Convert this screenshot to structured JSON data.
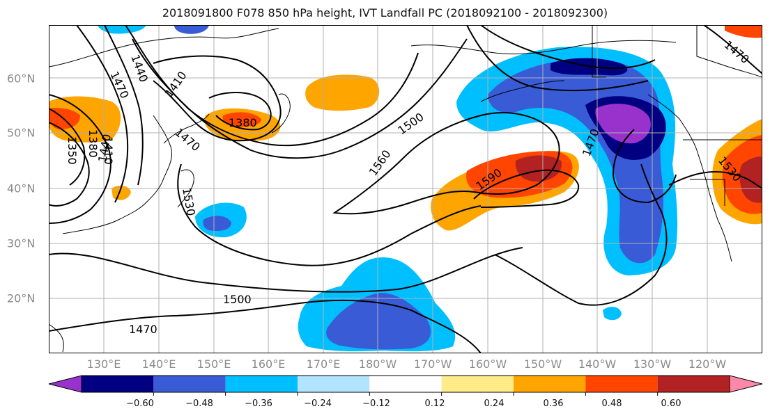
{
  "title": "2018091800 F078 850 hPa height, IVT Landfall PC (2018092100 - 2018092300)",
  "lat_labels": [
    "60°N",
    "50°N",
    "40°N",
    "30°N",
    "20°N"
  ],
  "lon_labels": [
    "130°E",
    "140°E",
    "150°E",
    "160°E",
    "170°E",
    "180°W",
    "170°W",
    "160°W",
    "150°W",
    "140°W",
    "130°W",
    "120°W"
  ],
  "contour_labels": [
    "1440",
    "1470",
    "1410",
    "1380",
    "1470",
    "1350",
    "1380",
    "1410",
    "1440",
    "1530",
    "1560",
    "1500",
    "1590",
    "1470",
    "1530",
    "1470",
    "1500",
    "1470"
  ],
  "colorbar": {
    "colors": [
      "#9932cc",
      "#000080",
      "#3a5bd6",
      "#00bfff",
      "#b3e4ff",
      "#ffffff",
      "#ffeb8a",
      "#ffa500",
      "#ff4500",
      "#b22222",
      "#ff88aa"
    ],
    "tick_labels": [
      "−0.60",
      "−0.48",
      "−0.36",
      "−0.24",
      "−0.12",
      "0.12",
      "0.24",
      "0.36",
      "0.48",
      "0.60"
    ]
  }
}
